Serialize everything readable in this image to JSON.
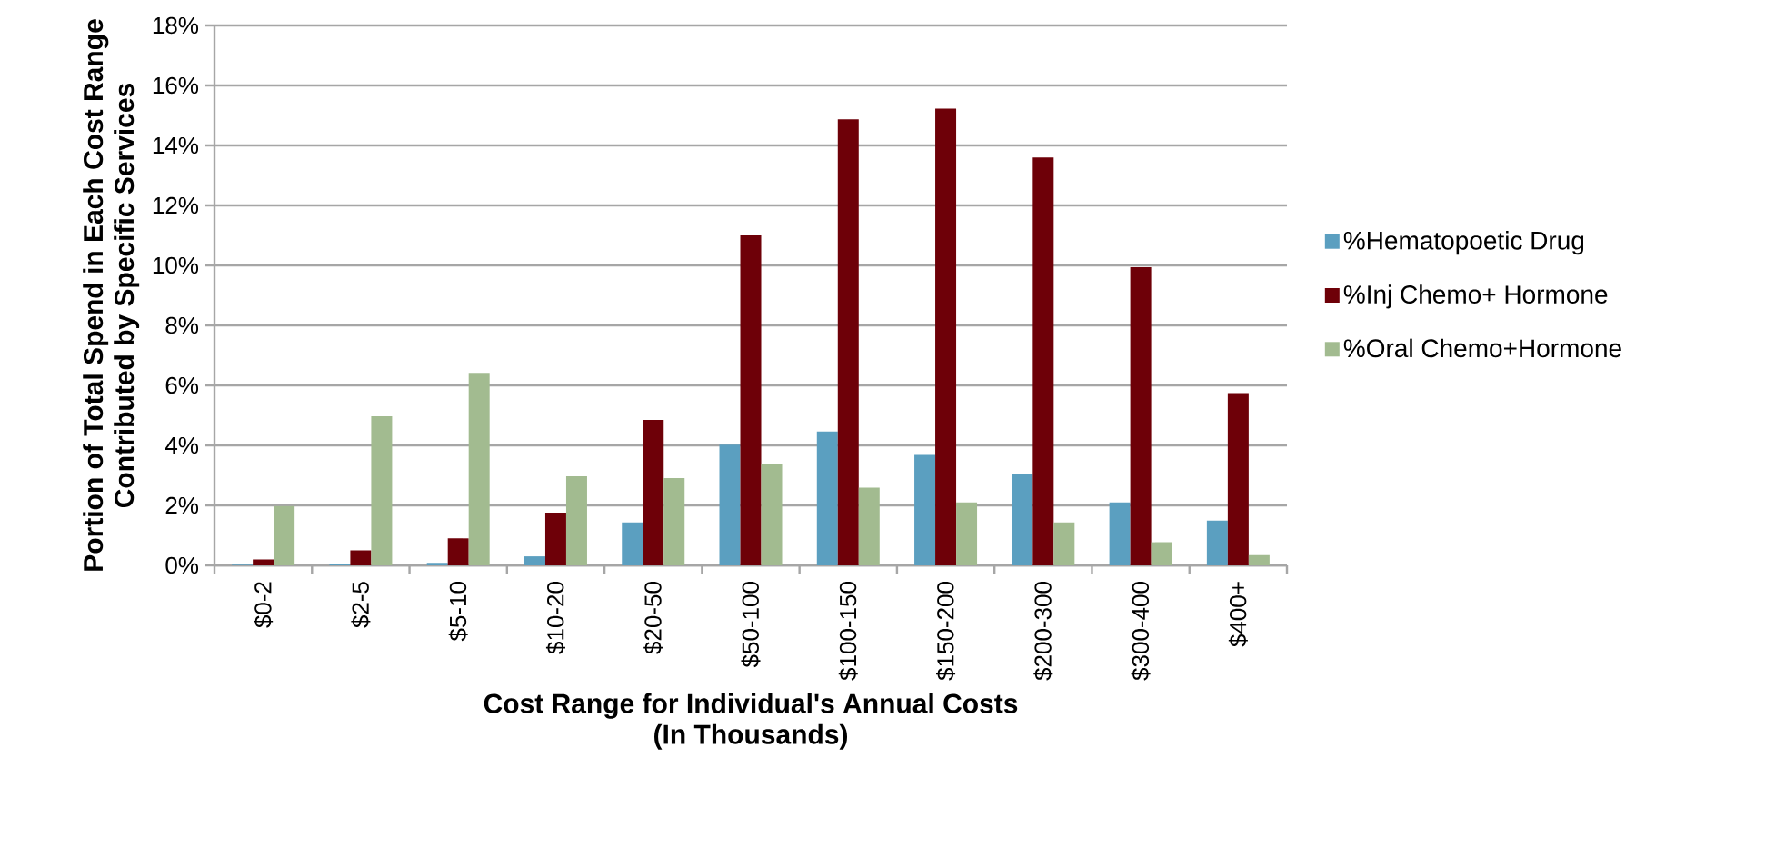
{
  "chart_data": {
    "type": "bar",
    "xlabel": "Cost Range for Individual's Annual Costs\n(In Thousands)",
    "ylabel": "Portion of Total Spend in Each Cost Range\nContributed by Specific Services",
    "categories": [
      "$0-2",
      "$2-5",
      "$5-10",
      "$10-20",
      "$20-50",
      "$50-100",
      "$100-150",
      "$150-200",
      "$200-300",
      "$300-400",
      "$400+"
    ],
    "series": [
      {
        "name": "%Hematopoetic Drug",
        "color": "#5b9fc0",
        "values": [
          0.02,
          0.03,
          0.08,
          0.3,
          1.43,
          4.02,
          4.46,
          3.68,
          3.03,
          2.1,
          1.49
        ]
      },
      {
        "name": "%Inj Chemo+ Hormone",
        "color": "#6e0008",
        "values": [
          0.2,
          0.5,
          0.9,
          1.76,
          4.85,
          11.0,
          14.87,
          15.23,
          13.6,
          9.94,
          5.74
        ]
      },
      {
        "name": "%Oral Chemo+Hormone",
        "color": "#a2bb90",
        "values": [
          1.98,
          4.97,
          6.42,
          2.97,
          2.91,
          3.37,
          2.59,
          2.1,
          1.43,
          0.77,
          0.34
        ]
      }
    ],
    "ylim": [
      0,
      18
    ],
    "yticks": [
      {
        "value": 0,
        "label": "0%"
      },
      {
        "value": 2,
        "label": "2%"
      },
      {
        "value": 4,
        "label": "4%"
      },
      {
        "value": 6,
        "label": "6%"
      },
      {
        "value": 8,
        "label": "8%"
      },
      {
        "value": 10,
        "label": "10%"
      },
      {
        "value": 12,
        "label": "12%"
      },
      {
        "value": 14,
        "label": "14%"
      },
      {
        "value": 16,
        "label": "16%"
      },
      {
        "value": 18,
        "label": "18%"
      }
    ],
    "grid": "y",
    "legend": "right"
  }
}
